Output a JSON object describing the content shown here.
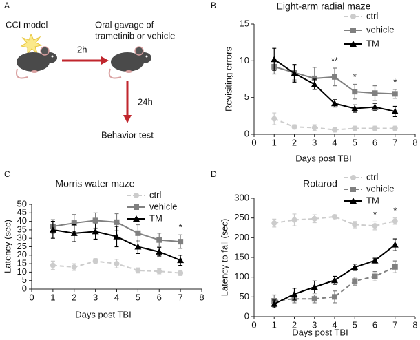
{
  "diagram": {
    "panel_label": "A",
    "start": "CCI model",
    "step1_time": "2h",
    "step1_line1": "Oral gavage of",
    "step1_line2": "trametinib or vehicle",
    "step2_time": "24h",
    "end": "Behavior test"
  },
  "chart_data": [
    {
      "type": "line",
      "panel_label": "B",
      "title": "Eight-arm radial maze",
      "xlabel": "Days post TBI",
      "ylabel": "Revisiting errors",
      "x": [
        1,
        2,
        3,
        4,
        5,
        6,
        7
      ],
      "xlim": [
        0,
        8
      ],
      "xticks": [
        0,
        1,
        2,
        3,
        4,
        5,
        6,
        7,
        8
      ],
      "ylim": [
        0,
        15
      ],
      "yticks": [
        0,
        5,
        10,
        15
      ],
      "legend": "upper right",
      "series": [
        {
          "name": "ctrl",
          "color": "#cccccc",
          "marker": "circle",
          "dashed": true,
          "values": [
            2.1,
            1.0,
            0.9,
            0.6,
            0.8,
            0.8,
            0.8
          ],
          "errors": [
            0.8,
            0.3,
            0.4,
            0.3,
            0.3,
            0.3,
            0.3
          ]
        },
        {
          "name": "vehicle",
          "color": "#808080",
          "marker": "square",
          "dashed": false,
          "values": [
            9.2,
            8.4,
            7.6,
            7.8,
            5.8,
            5.6,
            5.5
          ],
          "errors": [
            1.0,
            1.0,
            1.5,
            1.2,
            1.0,
            1.0,
            0.6
          ]
        },
        {
          "name": "TM",
          "color": "#000000",
          "marker": "triangle",
          "dashed": false,
          "values": [
            10.2,
            8.3,
            6.8,
            4.2,
            3.5,
            3.7,
            3.1
          ],
          "errors": [
            1.5,
            1.2,
            0.7,
            0.5,
            0.5,
            0.5,
            0.7
          ]
        }
      ],
      "annotations": [
        {
          "text": "**",
          "x": 4
        },
        {
          "text": "*",
          "x": 5
        },
        {
          "text": "*",
          "x": 7
        }
      ]
    },
    {
      "type": "line",
      "panel_label": "C",
      "title": "Morris water maze",
      "xlabel": "Days post TBI",
      "ylabel": "Latency (sec)",
      "x": [
        1,
        2,
        3,
        4,
        5,
        6,
        7
      ],
      "xlim": [
        0,
        8
      ],
      "xticks": [
        0,
        1,
        2,
        3,
        4,
        5,
        6,
        7,
        8
      ],
      "ylim": [
        0,
        50
      ],
      "yticks": [
        0,
        5,
        10,
        15,
        20,
        25,
        30,
        35,
        40,
        45,
        50
      ],
      "legend": "upper right",
      "series": [
        {
          "name": "ctrl",
          "color": "#cccccc",
          "marker": "circle",
          "dashed": true,
          "values": [
            14,
            13,
            16.5,
            15,
            11,
            10.5,
            9.5
          ],
          "errors": [
            2.5,
            2,
            1.5,
            2.5,
            1.5,
            1.5,
            1.5
          ]
        },
        {
          "name": "vehicle",
          "color": "#808080",
          "marker": "square",
          "dashed": false,
          "values": [
            37,
            39,
            40.5,
            39.5,
            33,
            29,
            28
          ],
          "errors": [
            4,
            5,
            4.5,
            5,
            5,
            4,
            4
          ]
        },
        {
          "name": "TM",
          "color": "#000000",
          "marker": "triangle",
          "dashed": false,
          "values": [
            35,
            33,
            34,
            31,
            25,
            22,
            17
          ],
          "errors": [
            5,
            5,
            4.5,
            6,
            4,
            2.5,
            3
          ]
        }
      ],
      "annotations": [
        {
          "text": "*",
          "x": 7
        }
      ]
    },
    {
      "type": "line",
      "panel_label": "D",
      "title": "Rotarod",
      "xlabel": "Days post TBI",
      "ylabel": "Latency to fall (sec)",
      "x": [
        1,
        2,
        3,
        4,
        5,
        6,
        7
      ],
      "xlim": [
        0,
        8
      ],
      "xticks": [
        0,
        1,
        2,
        3,
        4,
        5,
        6,
        7,
        8
      ],
      "ylim": [
        0,
        300
      ],
      "yticks": [
        0,
        50,
        100,
        150,
        200,
        250,
        300
      ],
      "legend": "upper right",
      "series": [
        {
          "name": "ctrl",
          "color": "#cccccc",
          "marker": "circle",
          "dashed": true,
          "values": [
            237,
            245,
            248,
            253,
            233,
            230,
            242
          ],
          "errors": [
            10,
            15,
            10,
            5,
            8,
            10,
            8
          ]
        },
        {
          "name": "vehicle",
          "color": "#808080",
          "marker": "square",
          "dashed": true,
          "values": [
            40,
            45,
            45,
            50,
            90,
            102,
            126
          ],
          "errors": [
            15,
            10,
            10,
            15,
            10,
            12,
            15
          ]
        },
        {
          "name": "TM",
          "color": "#000000",
          "marker": "triangle",
          "dashed": false,
          "values": [
            32,
            57,
            75,
            92,
            125,
            142,
            182
          ],
          "errors": [
            10,
            15,
            15,
            10,
            8,
            6,
            15
          ]
        }
      ],
      "annotations": [
        {
          "text": "*",
          "x": 6
        },
        {
          "text": "*",
          "x": 7
        }
      ]
    }
  ]
}
